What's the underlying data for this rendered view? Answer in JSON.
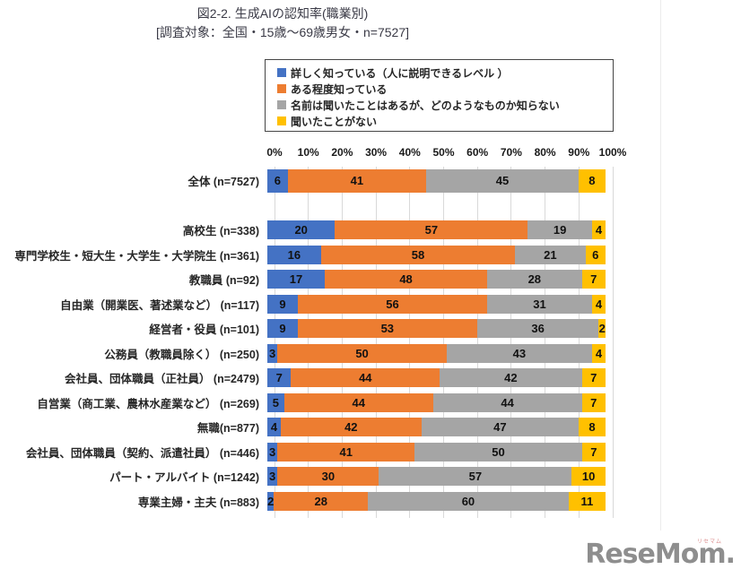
{
  "page": {
    "title": "図2-2. 生成AIの認知率(職業別)",
    "subtitle": "[調査対象：全国・15歳～69歳男女・n=7527]"
  },
  "logo": {
    "text": "ReseMom.",
    "ruby": "リセマム"
  },
  "chart_data": {
    "type": "bar",
    "variant": "horizontal-stacked-100",
    "unit": "%",
    "xlim": [
      0,
      100
    ],
    "x_ticks": [
      "0%",
      "10%",
      "20%",
      "30%",
      "40%",
      "50%",
      "60%",
      "70%",
      "80%",
      "90%",
      "100%"
    ],
    "grid": true,
    "gridline_color": "#d9d9d9",
    "legend_position": "top",
    "series": [
      {
        "name": "詳しく知っている（人に説明できるレベル ）",
        "color": "#4472C4"
      },
      {
        "name": "ある程度知っている",
        "color": "#ED7D31"
      },
      {
        "name": "名前は聞いたことはあるが、どのようなものか知らない",
        "color": "#A5A5A5"
      },
      {
        "name": "聞いたことがない",
        "color": "#FFC000"
      }
    ],
    "rows": [
      {
        "label": "全体 (n=7527)",
        "values": [
          6,
          41,
          45,
          8
        ],
        "emphasis": true
      },
      {
        "label": "高校生 (n=338)",
        "values": [
          20,
          57,
          19,
          4
        ]
      },
      {
        "label": "専門学校生・短大生・大学生・大学院生 (n=361)",
        "values": [
          16,
          58,
          21,
          6
        ]
      },
      {
        "label": "教職員 (n=92)",
        "values": [
          17,
          48,
          28,
          7
        ]
      },
      {
        "label": "自由業（開業医、著述業など） (n=117)",
        "values": [
          9,
          56,
          31,
          4
        ]
      },
      {
        "label": "経営者・役員 (n=101)",
        "values": [
          9,
          53,
          36,
          2
        ]
      },
      {
        "label": "公務員（教職員除く） (n=250)",
        "values": [
          3,
          50,
          43,
          4
        ]
      },
      {
        "label": "会社員、団体職員（正社員） (n=2479)",
        "values": [
          7,
          44,
          42,
          7
        ]
      },
      {
        "label": "自営業（商工業、農林水産業など） (n=269)",
        "values": [
          5,
          44,
          44,
          7
        ]
      },
      {
        "label": "無職(n=877)",
        "values": [
          4,
          42,
          47,
          8
        ]
      },
      {
        "label": "会社員、団体職員（契約、派遣社員） (n=446)",
        "values": [
          3,
          41,
          50,
          7
        ]
      },
      {
        "label": "パート・アルバイト (n=1242)",
        "values": [
          3,
          30,
          57,
          10
        ]
      },
      {
        "label": "専業主婦・主夫 (n=883)",
        "values": [
          2,
          28,
          60,
          11
        ]
      }
    ]
  }
}
